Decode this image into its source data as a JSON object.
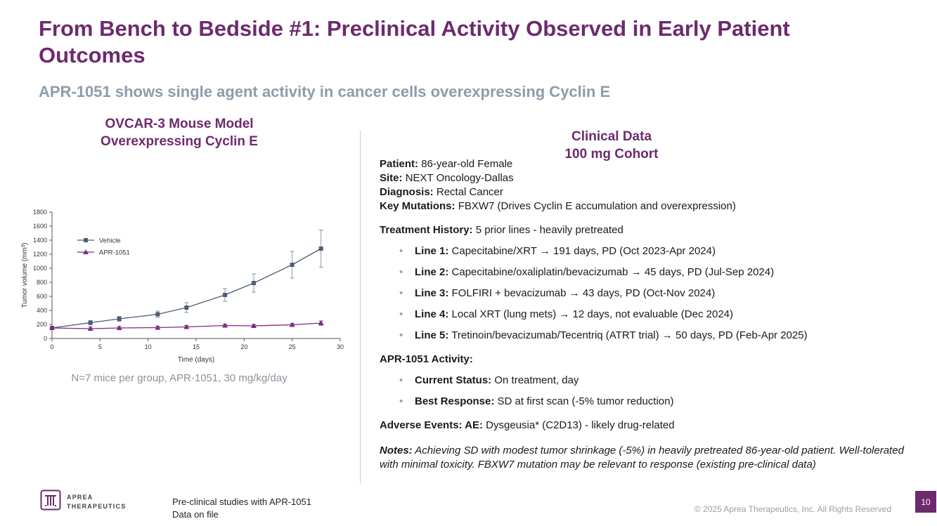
{
  "slide": {
    "title": "From Bench to Bedside #1: Preclinical Activity Observed in Early Patient Outcomes",
    "subtitle": "APR-1051 shows single agent activity in cancer cells overexpressing Cyclin E"
  },
  "left": {
    "chart_title_line1": "OVCAR-3 Mouse Model",
    "chart_title_line2": "Overexpressing Cyclin E",
    "caption": "N=7 mice per group, APR-1051, 30 mg/kg/day"
  },
  "chart_data": {
    "type": "line",
    "title": "OVCAR-3 Mouse Model Overexpressing Cyclin E",
    "xlabel": "Time (days)",
    "ylabel": "Tumor volume (mm³)",
    "xlim": [
      0,
      30
    ],
    "ylim": [
      0,
      1800
    ],
    "xtick": 5,
    "ytick": 200,
    "grid": false,
    "legend_position": "upper-left",
    "x": [
      0,
      4,
      7,
      11,
      14,
      18,
      21,
      25,
      28
    ],
    "series": [
      {
        "name": "Vehicle",
        "marker": "square",
        "color": "#4f5b76",
        "error_color": "#8a96ab",
        "values": [
          150,
          225,
          280,
          345,
          440,
          620,
          790,
          1050,
          1280
        ],
        "errors": [
          15,
          30,
          35,
          45,
          70,
          90,
          130,
          190,
          265
        ]
      },
      {
        "name": "APR-1051",
        "marker": "triangle",
        "color": "#7d2b7d",
        "error_color": "#7d2b7d",
        "values": [
          150,
          140,
          150,
          155,
          165,
          185,
          180,
          195,
          220
        ],
        "errors": [
          10,
          25,
          20,
          20,
          20,
          20,
          20,
          20,
          30
        ]
      }
    ]
  },
  "right": {
    "heading_line1": "Clinical Data",
    "heading_line2": "100 mg Cohort",
    "patient_rows": [
      {
        "label": "Patient:",
        "text": "86-year-old Female"
      },
      {
        "label": "Site:",
        "text": "NEXT Oncology-Dallas"
      },
      {
        "label": "Diagnosis:",
        "text": "Rectal Cancer"
      },
      {
        "label": "Key Mutations:",
        "text": "FBXW7 (Drives Cyclin E accumulation and overexpression)"
      }
    ],
    "treatment_history": {
      "label": "Treatment History:",
      "text": "5 prior lines - heavily pretreated"
    },
    "treatment_lines": [
      {
        "label": "Line 1:",
        "text": "Capecitabine/XRT → 191 days, PD (Oct 2023-Apr 2024)"
      },
      {
        "label": "Line 2:",
        "text": "Capecitabine/oxaliplatin/bevacizumab → 45 days, PD (Jul-Sep 2024)"
      },
      {
        "label": "Line 3:",
        "text": "FOLFIRI + bevacizumab → 43 days, PD (Oct-Nov 2024)"
      },
      {
        "label": "Line 4:",
        "text": "Local XRT (lung mets) → 12 days, not evaluable (Dec 2024)"
      },
      {
        "label": "Line 5:",
        "text": "Tretinoin/bevacizumab/Tecentriq (ATRT trial) → 50 days, PD (Feb-Apr 2025)"
      }
    ],
    "activity_heading": "APR-1051 Activity:",
    "activity_items": [
      {
        "label": "Current Status:",
        "text": "On treatment, day"
      },
      {
        "label": "Best Response:",
        "text": "SD at first scan (-5% tumor reduction)"
      }
    ],
    "adverse": {
      "label": "Adverse Events: AE:",
      "text": "Dysgeusia* (C2D13) - likely drug-related"
    },
    "notes": {
      "label": "Notes:",
      "text": "Achieving SD with modest tumor shrinkage (-5%) in heavily pretreated 86-year-old patient. Well-tolerated with minimal toxicity. FBXW7 mutation may be relevant to response (existing pre-clinical data)"
    }
  },
  "footer": {
    "logo_line1": "APREA",
    "logo_line2": "THERAPEUTICS",
    "note_line1": "Pre-clinical studies with APR-1051",
    "note_line2": "Data on file",
    "copyright": "© 2025 Aprea Therapeutics, Inc. All Rights Reserved",
    "page_number": "10"
  },
  "colors": {
    "brand_purple": "#6e2a6e",
    "subtitle_gray": "#8d9cab",
    "vehicle_series": "#4f5b76",
    "apr1051_series": "#7d2b7d",
    "divider_gray": "#c9cdd1"
  }
}
